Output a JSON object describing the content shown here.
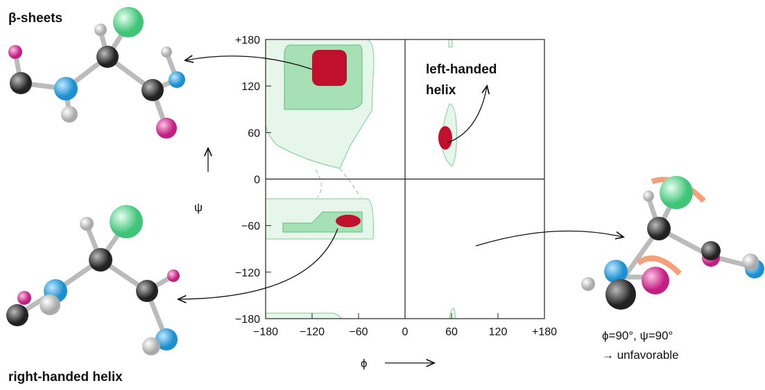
{
  "chart_data": {
    "type": "ramachandran",
    "xlabel": "ϕ",
    "ylabel": "ψ",
    "xlim": [
      -180,
      180
    ],
    "ylim": [
      -180,
      180
    ],
    "xticks": [
      {
        "value": -180,
        "label": "−180"
      },
      {
        "value": -120,
        "label": "−120"
      },
      {
        "value": -60,
        "label": "−60"
      },
      0,
      60,
      120,
      {
        "value": 180,
        "label": "+180"
      }
    ],
    "yticks": [
      {
        "value": 180,
        "label": "+180"
      },
      120,
      60,
      0,
      {
        "value": -60,
        "label": "−60"
      },
      {
        "value": -120,
        "label": "−120"
      },
      {
        "value": -180,
        "label": "−180"
      }
    ],
    "annotations": {
      "beta": "β-sheets",
      "left_helix": [
        "left-handed",
        "helix"
      ],
      "right_helix": "right-handed helix",
      "unfavorable": [
        "ϕ=90°, ψ=90°",
        "→ unfavorable"
      ]
    }
  }
}
